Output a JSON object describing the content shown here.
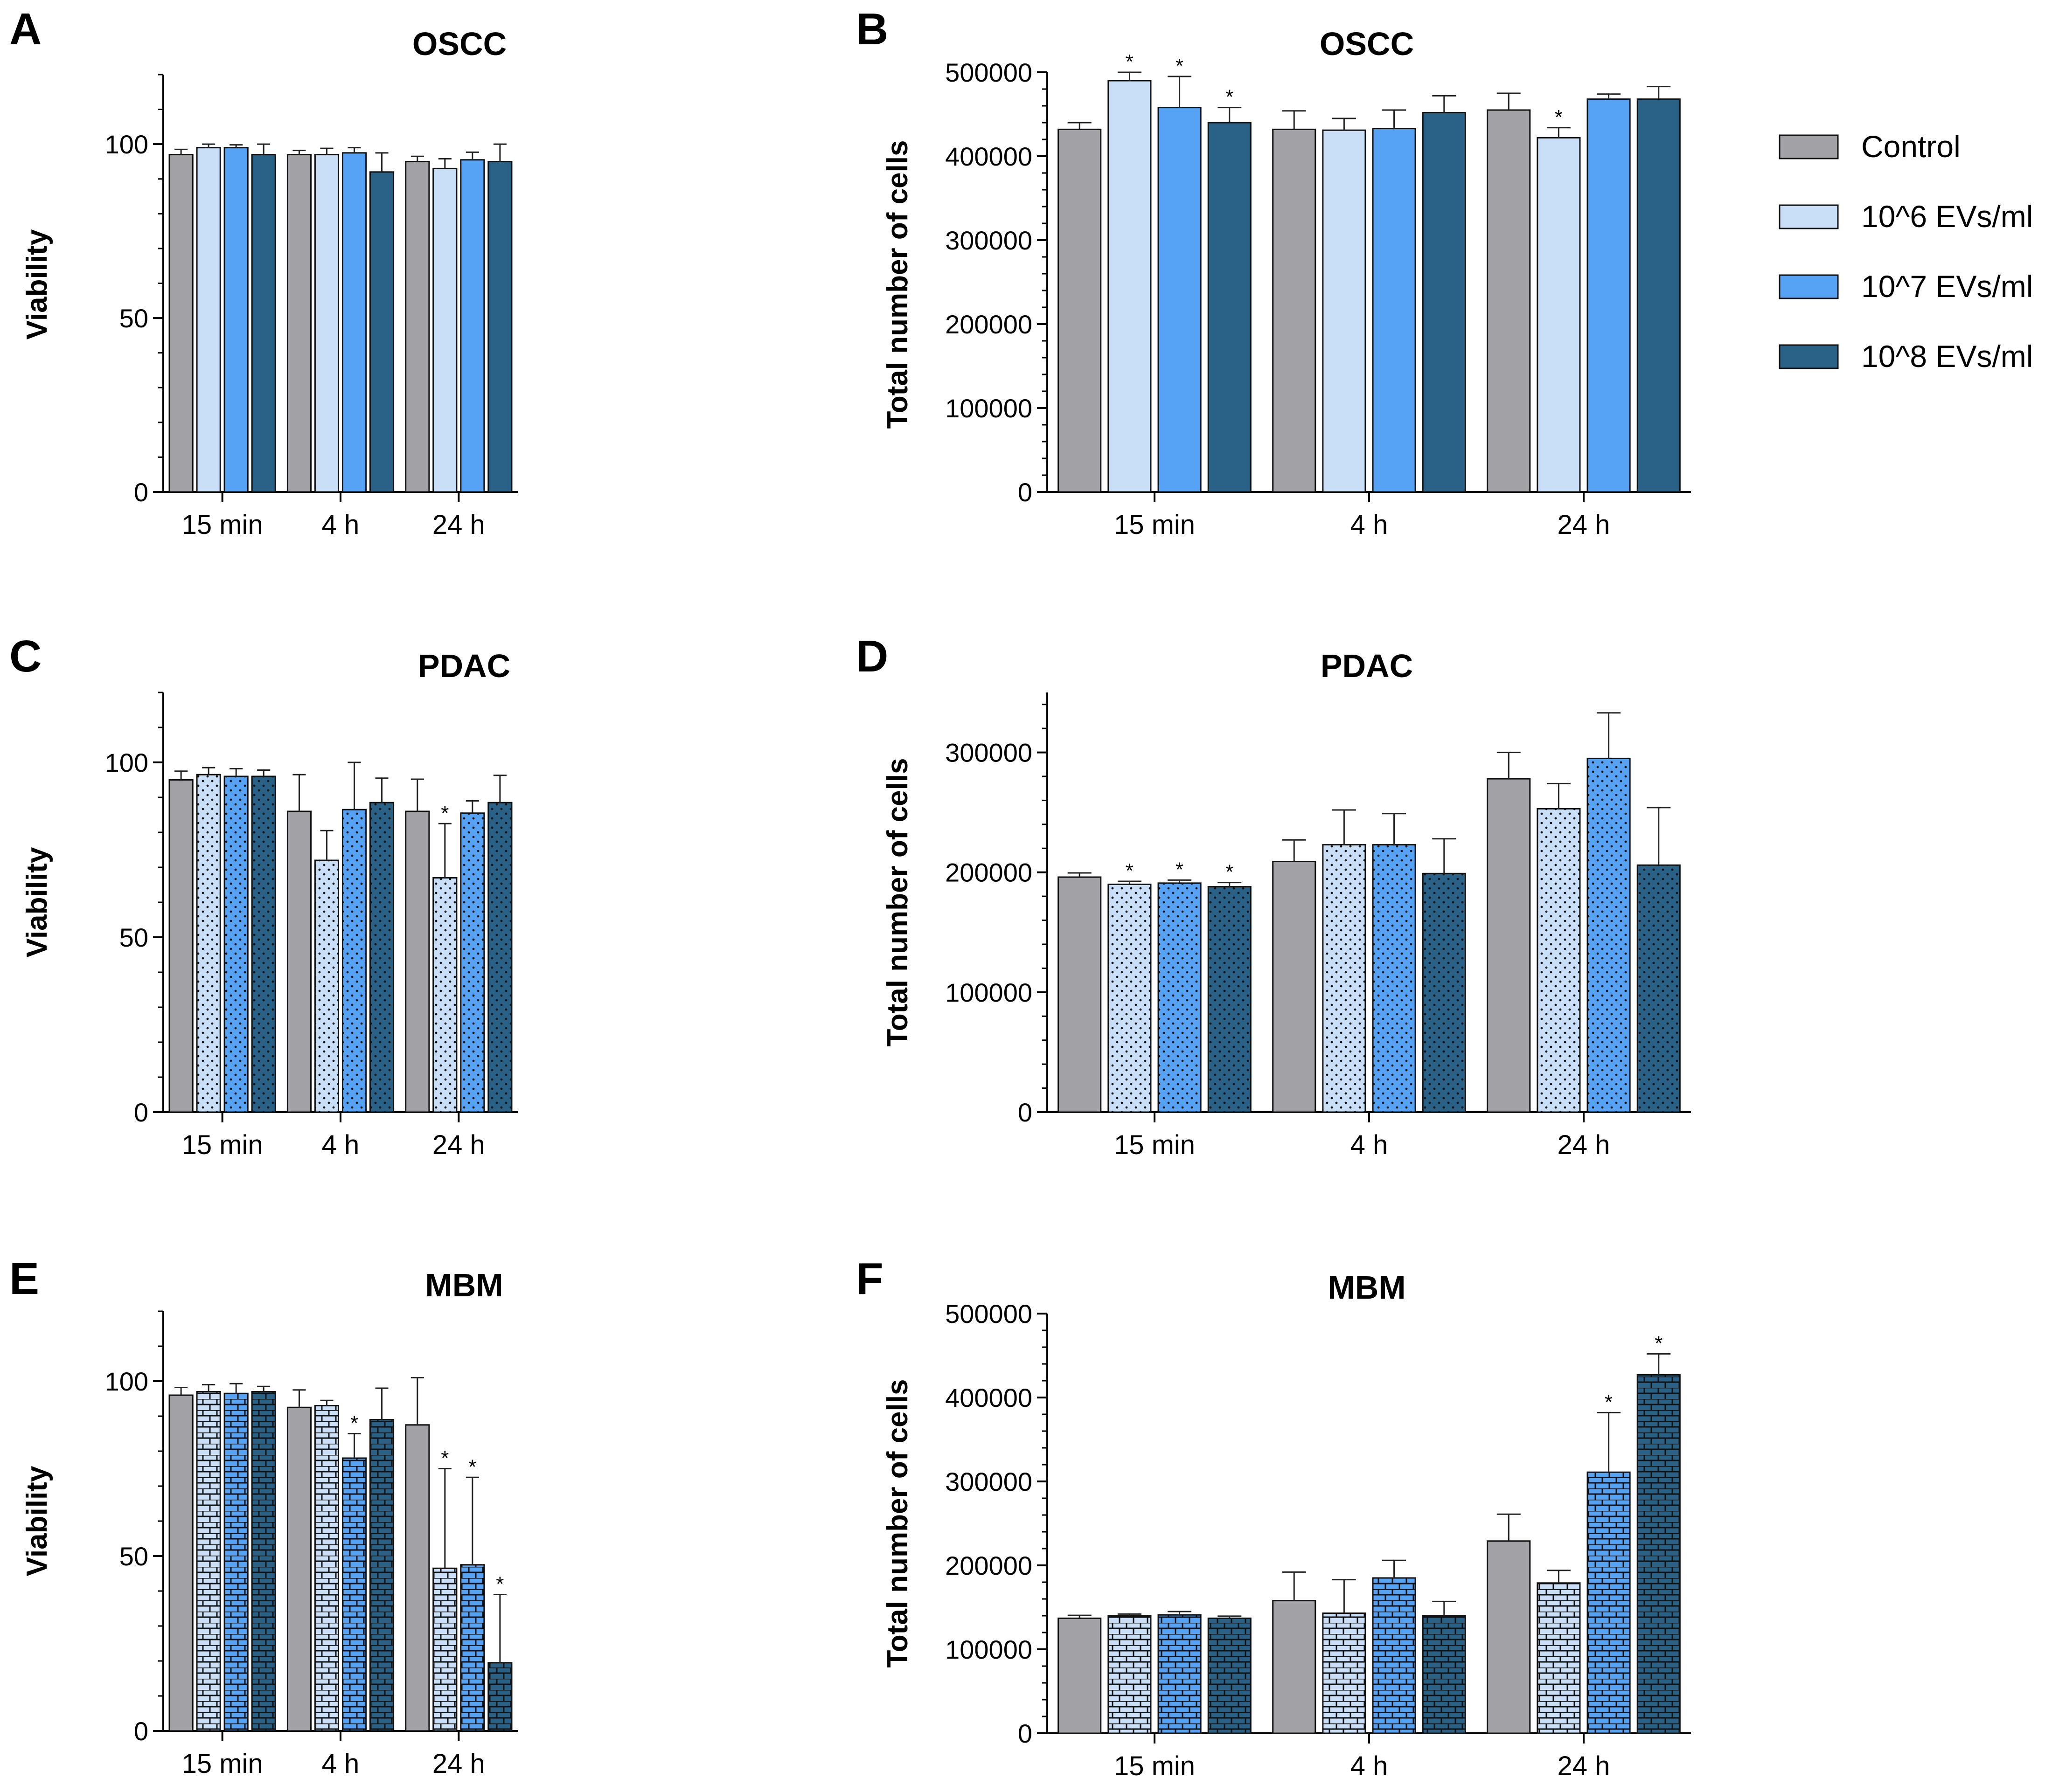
{
  "legend": [
    {
      "label": "Control",
      "color": "#a2a1a6"
    },
    {
      "label": "10^6 EVs/ml",
      "color": "#c9dff7"
    },
    {
      "label": "10^7 EVs/ml",
      "color": "#56a2f5"
    },
    {
      "label": "10^8 EVs/ml",
      "color": "#2a6187"
    }
  ],
  "chart_data": [
    {
      "panel": "A",
      "type": "bar",
      "title": "OSCC",
      "ylabel": "Viability",
      "categories": [
        "15 min",
        "4 h",
        "24 h"
      ],
      "ylim": [
        0,
        120
      ],
      "yticks": [
        0,
        50,
        100
      ],
      "pattern": "none",
      "series": [
        {
          "name": "Control",
          "values": [
            97,
            97,
            95
          ],
          "errors": [
            1.5,
            1.2,
            1.5
          ],
          "sig": [
            false,
            false,
            false
          ]
        },
        {
          "name": "10^6 EVs/ml",
          "values": [
            99,
            97,
            93
          ],
          "errors": [
            1,
            1.8,
            2.8
          ],
          "sig": [
            false,
            false,
            false
          ]
        },
        {
          "name": "10^7 EVs/ml",
          "values": [
            99,
            97.5,
            95.5
          ],
          "errors": [
            0.8,
            1.5,
            2.2
          ],
          "sig": [
            false,
            false,
            false
          ]
        },
        {
          "name": "10^8 EVs/ml",
          "values": [
            97,
            92,
            95
          ],
          "errors": [
            3,
            5.5,
            5
          ],
          "sig": [
            false,
            false,
            false
          ]
        }
      ]
    },
    {
      "panel": "B",
      "type": "bar",
      "title": "OSCC",
      "ylabel": "Total number of cells",
      "categories": [
        "15 min",
        "4 h",
        "24 h"
      ],
      "ylim": [
        0,
        500000
      ],
      "yticks": [
        0,
        100000,
        200000,
        300000,
        400000,
        500000
      ],
      "pattern": "none",
      "series": [
        {
          "name": "Control",
          "values": [
            432000,
            432000,
            455000
          ],
          "errors": [
            8000,
            22000,
            20000
          ],
          "sig": [
            false,
            false,
            false
          ]
        },
        {
          "name": "10^6 EVs/ml",
          "values": [
            490000,
            431000,
            422000
          ],
          "errors": [
            10000,
            14000,
            12000
          ],
          "sig": [
            true,
            false,
            true
          ]
        },
        {
          "name": "10^7 EVs/ml",
          "values": [
            458000,
            433000,
            468000
          ],
          "errors": [
            37000,
            22000,
            6000
          ],
          "sig": [
            true,
            false,
            false
          ]
        },
        {
          "name": "10^8 EVs/ml",
          "values": [
            440000,
            452000,
            468000
          ],
          "errors": [
            18000,
            20000,
            15000
          ],
          "sig": [
            true,
            false,
            false
          ]
        }
      ]
    },
    {
      "panel": "C",
      "type": "bar",
      "title": "PDAC",
      "ylabel": "Viability",
      "categories": [
        "15 min",
        "4 h",
        "24 h"
      ],
      "ylim": [
        0,
        120
      ],
      "yticks": [
        0,
        50,
        100
      ],
      "pattern": "dots",
      "series": [
        {
          "name": "Control",
          "values": [
            95,
            86,
            86
          ],
          "errors": [
            2.5,
            10.5,
            9.2
          ],
          "sig": [
            false,
            false,
            false
          ]
        },
        {
          "name": "10^6 EVs/ml",
          "values": [
            96.5,
            72,
            67
          ],
          "errors": [
            2,
            8.5,
            15.5
          ],
          "sig": [
            false,
            false,
            true
          ]
        },
        {
          "name": "10^7 EVs/ml",
          "values": [
            96,
            86.5,
            85.5
          ],
          "errors": [
            2.2,
            13.5,
            3.5
          ],
          "sig": [
            false,
            false,
            false
          ]
        },
        {
          "name": "10^8 EVs/ml",
          "values": [
            96,
            88.5,
            88.5
          ],
          "errors": [
            1.8,
            7,
            7.8
          ],
          "sig": [
            false,
            false,
            false
          ]
        }
      ]
    },
    {
      "panel": "D",
      "type": "bar",
      "title": "PDAC",
      "ylabel": "Total number of cells",
      "categories": [
        "15 min",
        "4 h",
        "24 h"
      ],
      "ylim": [
        0,
        350000
      ],
      "yticks": [
        0,
        100000,
        200000,
        300000
      ],
      "pattern": "dots",
      "series": [
        {
          "name": "Control",
          "values": [
            196000,
            209000,
            278000
          ],
          "errors": [
            3500,
            18000,
            22000
          ],
          "sig": [
            false,
            false,
            false
          ]
        },
        {
          "name": "10^6 EVs/ml",
          "values": [
            190000,
            223000,
            253000
          ],
          "errors": [
            2500,
            29000,
            21000
          ],
          "sig": [
            true,
            false,
            false
          ]
        },
        {
          "name": "10^7 EVs/ml",
          "values": [
            191000,
            223000,
            295000
          ],
          "errors": [
            2500,
            26000,
            38000
          ],
          "sig": [
            true,
            false,
            false
          ]
        },
        {
          "name": "10^8 EVs/ml",
          "values": [
            188000,
            199000,
            206000
          ],
          "errors": [
            3500,
            29000,
            48000
          ],
          "sig": [
            true,
            false,
            false
          ]
        }
      ]
    },
    {
      "panel": "E",
      "type": "bar",
      "title": "MBM",
      "ylabel": "Viability",
      "categories": [
        "15 min",
        "4 h",
        "24 h"
      ],
      "ylim": [
        0,
        120
      ],
      "yticks": [
        0,
        50,
        100
      ],
      "pattern": "bricks",
      "series": [
        {
          "name": "Control",
          "values": [
            96,
            92.5,
            87.5
          ],
          "errors": [
            2.2,
            5,
            13.5
          ],
          "sig": [
            false,
            false,
            false
          ]
        },
        {
          "name": "10^6 EVs/ml",
          "values": [
            97,
            93,
            46.5
          ],
          "errors": [
            2,
            1.5,
            28.5
          ],
          "sig": [
            false,
            false,
            true
          ]
        },
        {
          "name": "10^7 EVs/ml",
          "values": [
            96.5,
            78,
            47.5
          ],
          "errors": [
            2.8,
            7,
            25
          ],
          "sig": [
            false,
            true,
            true
          ]
        },
        {
          "name": "10^8 EVs/ml",
          "values": [
            97,
            89,
            19.5
          ],
          "errors": [
            1.5,
            9,
            19.5
          ],
          "sig": [
            false,
            false,
            true
          ]
        }
      ]
    },
    {
      "panel": "F",
      "type": "bar",
      "title": "MBM",
      "ylabel": "Total number of cells",
      "categories": [
        "15 min",
        "4 h",
        "24 h"
      ],
      "ylim": [
        0,
        500000
      ],
      "yticks": [
        0,
        100000,
        200000,
        300000,
        400000,
        500000
      ],
      "pattern": "bricks",
      "series": [
        {
          "name": "Control",
          "values": [
            137000,
            158000,
            229000
          ],
          "errors": [
            3500,
            34000,
            32000
          ],
          "sig": [
            false,
            false,
            false
          ]
        },
        {
          "name": "10^6 EVs/ml",
          "values": [
            140000,
            143000,
            179000
          ],
          "errors": [
            2000,
            40000,
            15000
          ],
          "sig": [
            false,
            false,
            false
          ]
        },
        {
          "name": "10^7 EVs/ml",
          "values": [
            141000,
            185000,
            311000
          ],
          "errors": [
            4000,
            21000,
            71000
          ],
          "sig": [
            false,
            false,
            true
          ]
        },
        {
          "name": "10^8 EVs/ml",
          "values": [
            137000,
            140000,
            427000
          ],
          "errors": [
            2500,
            17000,
            25000
          ],
          "sig": [
            false,
            false,
            true
          ]
        }
      ]
    }
  ]
}
